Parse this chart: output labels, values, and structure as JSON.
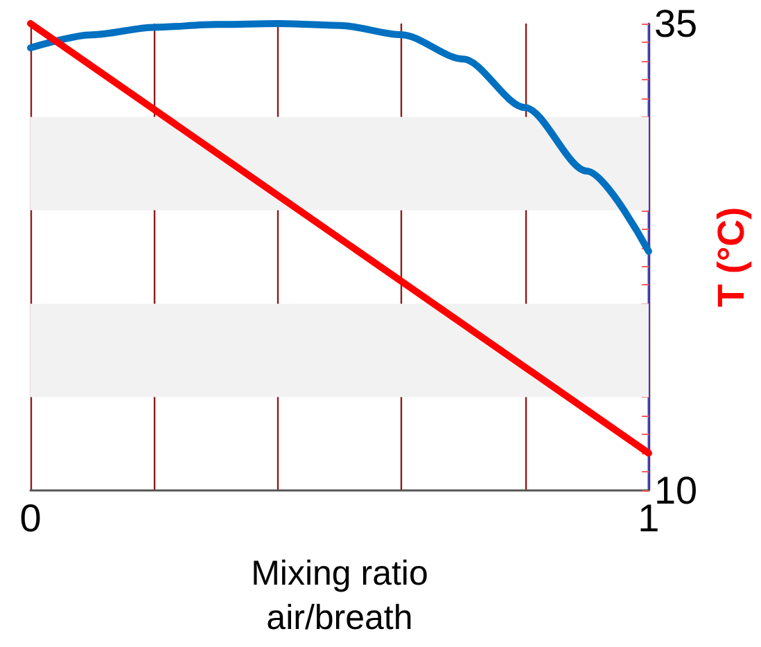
{
  "chart_data": {
    "type": "line",
    "xlabel": "Mixing ratio\nair/breath",
    "ylabel": "T (°C)",
    "xlim": [
      0,
      1
    ],
    "xticks": [
      0,
      {
        "value": 0.2,
        "label": null
      },
      {
        "value": 0.4,
        "label": null
      },
      {
        "value": 0.6,
        "label": null
      },
      {
        "value": 0.8,
        "label": null
      },
      1
    ],
    "ylim": [
      10,
      35
    ],
    "yticks": [
      10,
      {
        "value": 11,
        "label": null
      },
      {
        "value": 12,
        "label": null
      },
      {
        "value": 13,
        "label": null
      },
      {
        "value": 14,
        "label": null
      },
      {
        "value": 15,
        "label": null
      },
      {
        "value": 16,
        "label": null
      },
      {
        "value": 17,
        "label": null
      },
      {
        "value": 18,
        "label": null
      },
      {
        "value": 19,
        "label": null
      },
      {
        "value": 20,
        "label": null
      },
      {
        "value": 21,
        "label": null
      },
      {
        "value": 22,
        "label": null
      },
      {
        "value": 23,
        "label": null
      },
      {
        "value": 24,
        "label": null
      },
      {
        "value": 25,
        "label": null
      },
      {
        "value": 26,
        "label": null
      },
      {
        "value": 27,
        "label": null
      },
      {
        "value": 28,
        "label": null
      },
      {
        "value": 29,
        "label": null
      },
      {
        "value": 30,
        "label": null
      },
      {
        "value": 31,
        "label": null
      },
      {
        "value": 32,
        "label": null
      },
      {
        "value": 33,
        "label": null
      },
      {
        "value": 34,
        "label": null
      },
      35
    ],
    "x": [
      0,
      0.1,
      0.2,
      0.3,
      0.4,
      0.5,
      0.6,
      0.7,
      0.8,
      0.9,
      1
    ],
    "series": [
      {
        "color": "#0070c0",
        "values": [
          33.7,
          34.4,
          34.8,
          34.95,
          35,
          34.9,
          34.4,
          33.1,
          30.5,
          27.1,
          22.8
        ]
      },
      {
        "color": "#ff0000",
        "x": [
          0,
          1
        ],
        "values": [
          35,
          12
        ]
      }
    ],
    "bands": [
      {
        "axis": "y",
        "from": 15,
        "to": 20,
        "color": "#f2f2f2"
      },
      {
        "axis": "y",
        "from": 25,
        "to": 30,
        "color": "#f2f2f2"
      }
    ],
    "grid": "x",
    "marker": "none",
    "line_style": "solid"
  }
}
